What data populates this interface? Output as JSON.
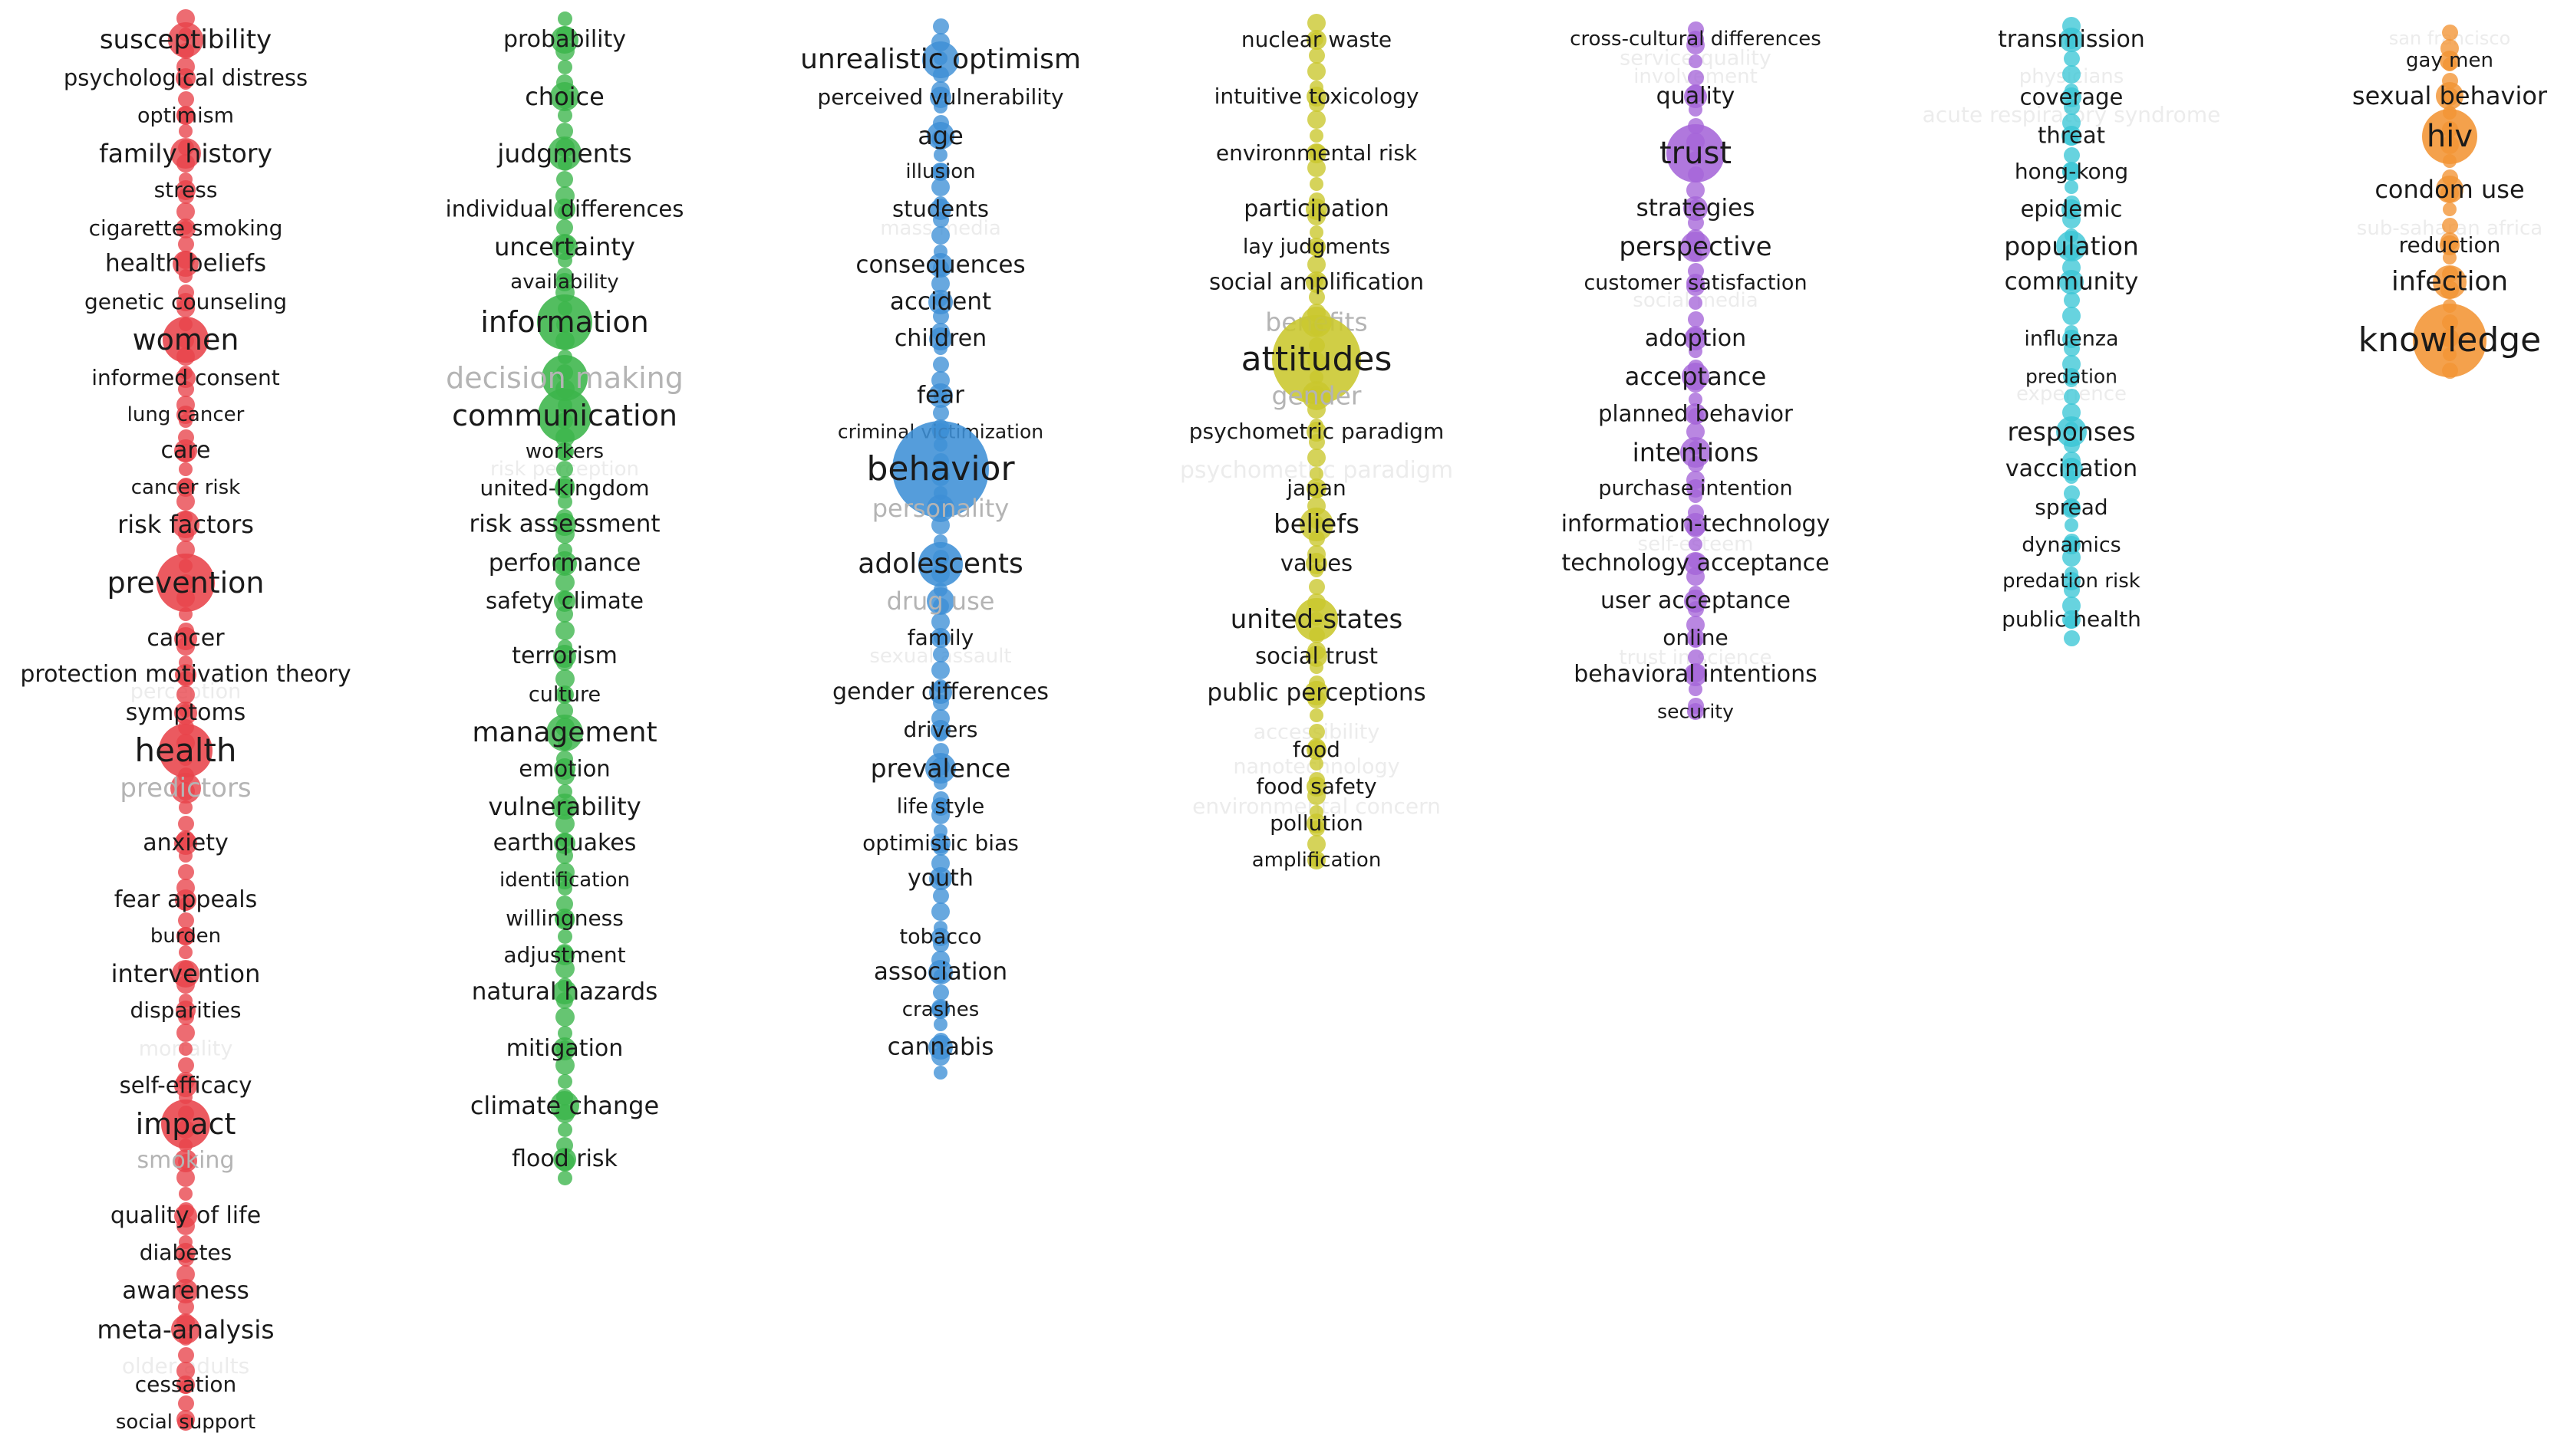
{
  "title": "Keyword co-occurrence density map",
  "clusters": [
    {
      "id": "red",
      "color": "#e8434a",
      "labels": [
        "susceptibility",
        "psychological distress",
        "optimism",
        "family history",
        "stress",
        "cigarette smoking",
        "health beliefs",
        "genetic counseling",
        "women",
        "informed consent",
        "lung cancer",
        "care",
        "cancer risk",
        "risk factors",
        "prevention",
        "cancer",
        "protection motivation theory",
        "symptoms",
        "health",
        "predictors",
        "anxiety",
        "fear appeals",
        "burden",
        "intervention",
        "disparities",
        "self-efficacy",
        "impact",
        "smoking",
        "quality of life",
        "diabetes",
        "awareness",
        "meta-analysis",
        "cessation",
        "social support"
      ]
    },
    {
      "id": "green",
      "color": "#3bb54a",
      "labels": [
        "probability",
        "choice",
        "judgments",
        "individual differences",
        "uncertainty",
        "availability",
        "information",
        "decision making",
        "communication",
        "workers",
        "united-kingdom",
        "risk assessment",
        "performance",
        "safety climate",
        "terrorism",
        "culture",
        "management",
        "emotion",
        "vulnerability",
        "earthquakes",
        "identification",
        "willingness",
        "adjustment",
        "natural hazards",
        "mitigation",
        "climate change",
        "flood risk"
      ]
    },
    {
      "id": "blue",
      "color": "#3d8fd6",
      "labels": [
        "unrealistic optimism",
        "perceived vulnerability",
        "age",
        "illusion",
        "students",
        "consequences",
        "accident",
        "children",
        "fear",
        "criminal victimization",
        "behavior",
        "personality",
        "adolescents",
        "drug use",
        "family",
        "gender differences",
        "drivers",
        "prevalence",
        "life style",
        "optimistic bias",
        "youth",
        "tobacco",
        "association",
        "crashes",
        "cannabis"
      ]
    },
    {
      "id": "yellow",
      "color": "#c9c72c",
      "labels": [
        "nuclear waste",
        "intuitive toxicology",
        "environmental risk",
        "participation",
        "lay judgments",
        "social amplification",
        "benefits",
        "attitudes",
        "gender",
        "psychometric paradigm",
        "japan",
        "beliefs",
        "values",
        "united-states",
        "social trust",
        "public perceptions",
        "food",
        "food safety",
        "pollution",
        "amplification"
      ]
    },
    {
      "id": "purple",
      "color": "#a565d8",
      "labels": [
        "cross-cultural differences",
        "quality",
        "trust",
        "strategies",
        "perspective",
        "customer satisfaction",
        "adoption",
        "acceptance",
        "planned behavior",
        "intentions",
        "purchase intention",
        "information-technology",
        "technology acceptance",
        "user acceptance",
        "online",
        "behavioral intentions",
        "security"
      ]
    },
    {
      "id": "cyan",
      "color": "#3cc6d6",
      "labels": [
        "transmission",
        "coverage",
        "threat",
        "hong-kong",
        "epidemic",
        "population",
        "community",
        "influenza",
        "predation",
        "responses",
        "vaccination",
        "spread",
        "dynamics",
        "predation risk",
        "public health"
      ]
    },
    {
      "id": "orange",
      "color": "#f29433",
      "labels": [
        "gay men",
        "sexual behavior",
        "hiv",
        "condom use",
        "reduction",
        "infection",
        "knowledge"
      ]
    }
  ],
  "ghost_labels": [
    "psychometric paradigm",
    "environmental concern",
    "service quality",
    "acute respiratory syndrome",
    "san francisco",
    "sub-saharan africa",
    "involvement",
    "physicians",
    "experience",
    "self-esteem",
    "older adults",
    "mortality",
    "perception",
    "nanotechnology",
    "accessibility",
    "social media",
    "risk perception",
    "sexual assault",
    "trust in science",
    "mass media"
  ]
}
